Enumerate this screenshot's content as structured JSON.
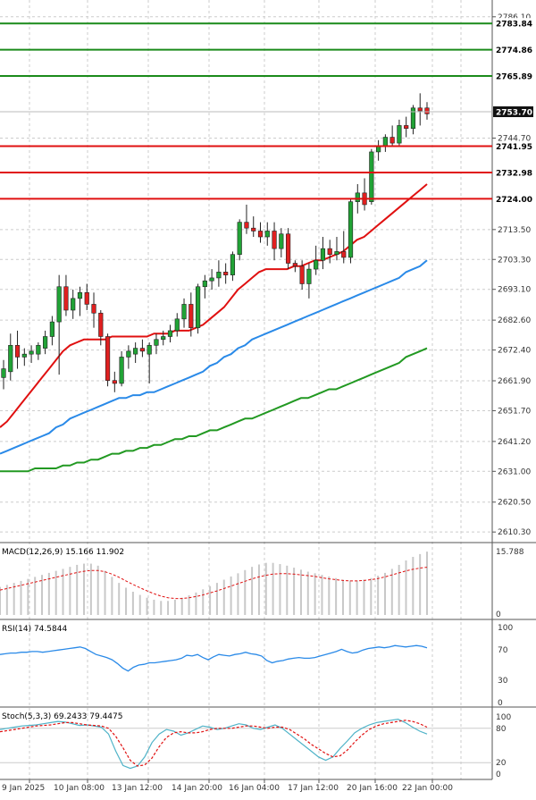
{
  "chart_data": {
    "type": "candlestick",
    "instrument_colors": {
      "up": "#21a336",
      "down": "#e02020",
      "resistance": "#1a8a1a",
      "support": "#e01010",
      "ma_fast": "#e01010",
      "ma_mid": "#2a8ae8",
      "ma_slow": "#229922",
      "macd_hist": "#c8c8c8",
      "macd_signal": "#e01010",
      "rsi": "#2a8ae8",
      "stoch_k": "#4fb3c8",
      "stoch_d": "#e01010",
      "grid": "#cccccc"
    },
    "price_axis": {
      "ticks": [
        "2610.30",
        "2620.50",
        "2631.00",
        "2641.20",
        "2651.70",
        "2661.90",
        "2672.40",
        "2682.60",
        "2693.10",
        "2703.30",
        "2713.50",
        "2744.70",
        "2786.10"
      ],
      "ylim": [
        2607,
        2790
      ]
    },
    "time_axis": {
      "labels": [
        "9 Jan 2025",
        "10 Jan 08:00",
        "13 Jan 12:00",
        "14 Jan 20:00",
        "16 Jan 04:00",
        "17 Jan 12:00",
        "20 Jan 16:00",
        "22 Jan 00:00"
      ]
    },
    "current_price": "2753.70",
    "resistance_levels": [
      "2783.84",
      "2774.86",
      "2765.89"
    ],
    "support_levels": [
      "2741.95",
      "2732.98",
      "2724.00"
    ],
    "candles": [
      {
        "o": 2663,
        "h": 2669,
        "l": 2659,
        "c": 2666
      },
      {
        "o": 2665,
        "h": 2678,
        "l": 2662,
        "c": 2674
      },
      {
        "o": 2674,
        "h": 2679,
        "l": 2666,
        "c": 2670
      },
      {
        "o": 2670,
        "h": 2673,
        "l": 2667,
        "c": 2671
      },
      {
        "o": 2671,
        "h": 2674,
        "l": 2668,
        "c": 2672
      },
      {
        "o": 2671,
        "h": 2675,
        "l": 2669,
        "c": 2674
      },
      {
        "o": 2673,
        "h": 2679,
        "l": 2671,
        "c": 2677
      },
      {
        "o": 2677,
        "h": 2684,
        "l": 2674,
        "c": 2682
      },
      {
        "o": 2682,
        "h": 2698,
        "l": 2664,
        "c": 2694
      },
      {
        "o": 2694,
        "h": 2698,
        "l": 2684,
        "c": 2686
      },
      {
        "o": 2686,
        "h": 2693,
        "l": 2683,
        "c": 2690
      },
      {
        "o": 2690,
        "h": 2694,
        "l": 2684,
        "c": 2692
      },
      {
        "o": 2692,
        "h": 2695,
        "l": 2686,
        "c": 2688
      },
      {
        "o": 2688,
        "h": 2692,
        "l": 2680,
        "c": 2685
      },
      {
        "o": 2685,
        "h": 2686,
        "l": 2674,
        "c": 2677
      },
      {
        "o": 2677,
        "h": 2678,
        "l": 2660,
        "c": 2662
      },
      {
        "o": 2662,
        "h": 2665,
        "l": 2658,
        "c": 2661
      },
      {
        "o": 2661,
        "h": 2672,
        "l": 2660,
        "c": 2670
      },
      {
        "o": 2670,
        "h": 2674,
        "l": 2666,
        "c": 2672
      },
      {
        "o": 2671,
        "h": 2675,
        "l": 2668,
        "c": 2673
      },
      {
        "o": 2673,
        "h": 2676,
        "l": 2670,
        "c": 2672
      },
      {
        "o": 2671,
        "h": 2675,
        "l": 2661,
        "c": 2674
      },
      {
        "o": 2674,
        "h": 2678,
        "l": 2671,
        "c": 2676
      },
      {
        "o": 2676,
        "h": 2679,
        "l": 2674,
        "c": 2677
      },
      {
        "o": 2677,
        "h": 2681,
        "l": 2675,
        "c": 2679
      },
      {
        "o": 2679,
        "h": 2685,
        "l": 2677,
        "c": 2683
      },
      {
        "o": 2683,
        "h": 2690,
        "l": 2680,
        "c": 2688
      },
      {
        "o": 2688,
        "h": 2692,
        "l": 2677,
        "c": 2680
      },
      {
        "o": 2680,
        "h": 2695,
        "l": 2678,
        "c": 2694
      },
      {
        "o": 2694,
        "h": 2698,
        "l": 2690,
        "c": 2696
      },
      {
        "o": 2696,
        "h": 2700,
        "l": 2693,
        "c": 2697
      },
      {
        "o": 2697,
        "h": 2703,
        "l": 2694,
        "c": 2699
      },
      {
        "o": 2699,
        "h": 2702,
        "l": 2695,
        "c": 2698
      },
      {
        "o": 2698,
        "h": 2706,
        "l": 2696,
        "c": 2705
      },
      {
        "o": 2705,
        "h": 2717,
        "l": 2703,
        "c": 2716
      },
      {
        "o": 2716,
        "h": 2722,
        "l": 2712,
        "c": 2714
      },
      {
        "o": 2714,
        "h": 2718,
        "l": 2711,
        "c": 2713
      },
      {
        "o": 2713,
        "h": 2716,
        "l": 2709,
        "c": 2711
      },
      {
        "o": 2711,
        "h": 2716,
        "l": 2708,
        "c": 2713
      },
      {
        "o": 2713,
        "h": 2716,
        "l": 2703,
        "c": 2707
      },
      {
        "o": 2707,
        "h": 2714,
        "l": 2704,
        "c": 2712
      },
      {
        "o": 2712,
        "h": 2714,
        "l": 2700,
        "c": 2702
      },
      {
        "o": 2702,
        "h": 2703,
        "l": 2699,
        "c": 2701
      },
      {
        "o": 2701,
        "h": 2703,
        "l": 2693,
        "c": 2695
      },
      {
        "o": 2695,
        "h": 2702,
        "l": 2690,
        "c": 2700
      },
      {
        "o": 2700,
        "h": 2708,
        "l": 2698,
        "c": 2703
      },
      {
        "o": 2703,
        "h": 2711,
        "l": 2700,
        "c": 2707
      },
      {
        "o": 2707,
        "h": 2710,
        "l": 2702,
        "c": 2705
      },
      {
        "o": 2705,
        "h": 2711,
        "l": 2703,
        "c": 2706
      },
      {
        "o": 2706,
        "h": 2713,
        "l": 2702,
        "c": 2704
      },
      {
        "o": 2704,
        "h": 2724,
        "l": 2702,
        "c": 2723
      },
      {
        "o": 2723,
        "h": 2729,
        "l": 2719,
        "c": 2726
      },
      {
        "o": 2726,
        "h": 2731,
        "l": 2720,
        "c": 2722
      },
      {
        "o": 2723,
        "h": 2741,
        "l": 2722,
        "c": 2740
      },
      {
        "o": 2740,
        "h": 2744,
        "l": 2737,
        "c": 2742
      },
      {
        "o": 2742,
        "h": 2746,
        "l": 2740,
        "c": 2745
      },
      {
        "o": 2745,
        "h": 2749,
        "l": 2742,
        "c": 2743
      },
      {
        "o": 2743,
        "h": 2751,
        "l": 2742,
        "c": 2749
      },
      {
        "o": 2749,
        "h": 2752,
        "l": 2745,
        "c": 2748
      },
      {
        "o": 2748,
        "h": 2756,
        "l": 2746,
        "c": 2755
      },
      {
        "o": 2755,
        "h": 2760,
        "l": 2749,
        "c": 2754
      },
      {
        "o": 2755,
        "h": 2757,
        "l": 2751,
        "c": 2753
      }
    ],
    "ma_fast": [
      2646,
      2648,
      2651,
      2654,
      2657,
      2660,
      2663,
      2666,
      2669,
      2672,
      2674,
      2675,
      2676,
      2676,
      2676,
      2676,
      2677,
      2677,
      2677,
      2677,
      2677,
      2677,
      2678,
      2678,
      2678,
      2679,
      2679,
      2679,
      2680,
      2681,
      2683,
      2685,
      2687,
      2690,
      2693,
      2695,
      2697,
      2699,
      2700,
      2700,
      2700,
      2700,
      2701,
      2701,
      2702,
      2703,
      2703,
      2704,
      2705,
      2706,
      2708,
      2710,
      2711,
      2713,
      2715,
      2717,
      2719,
      2721,
      2723,
      2725,
      2727,
      2729
    ],
    "ma_mid": [
      2637,
      2638,
      2639,
      2640,
      2641,
      2642,
      2643,
      2644,
      2646,
      2647,
      2649,
      2650,
      2651,
      2652,
      2653,
      2654,
      2655,
      2656,
      2656,
      2657,
      2657,
      2658,
      2658,
      2659,
      2660,
      2661,
      2662,
      2663,
      2664,
      2665,
      2667,
      2668,
      2670,
      2671,
      2673,
      2674,
      2676,
      2677,
      2678,
      2679,
      2680,
      2681,
      2682,
      2683,
      2684,
      2685,
      2686,
      2687,
      2688,
      2689,
      2690,
      2691,
      2692,
      2693,
      2694,
      2695,
      2696,
      2697,
      2699,
      2700,
      2701,
      2703
    ],
    "ma_slow": [
      2631,
      2631,
      2631,
      2631,
      2631,
      2632,
      2632,
      2632,
      2632,
      2633,
      2633,
      2634,
      2634,
      2635,
      2635,
      2636,
      2637,
      2637,
      2638,
      2638,
      2639,
      2639,
      2640,
      2640,
      2641,
      2642,
      2642,
      2643,
      2643,
      2644,
      2645,
      2645,
      2646,
      2647,
      2648,
      2649,
      2649,
      2650,
      2651,
      2652,
      2653,
      2654,
      2655,
      2656,
      2656,
      2657,
      2658,
      2659,
      2659,
      2660,
      2661,
      2662,
      2663,
      2664,
      2665,
      2666,
      2667,
      2668,
      2670,
      2671,
      2672,
      2673
    ],
    "macd": {
      "label": "MACD(12,26,9) 15.166 11.902",
      "top_label": "15.788",
      "zero_label": "0",
      "ylim": [
        0,
        16.5
      ],
      "histogram": [
        7,
        7.5,
        8,
        8.5,
        9,
        9.5,
        10,
        10.5,
        11,
        11.5,
        12,
        12.5,
        12.8,
        12.8,
        12.3,
        11,
        9.5,
        8,
        6.8,
        5.8,
        5,
        4.3,
        3.8,
        3.5,
        3.5,
        3.8,
        4.3,
        4.9,
        5.6,
        6.4,
        7.2,
        8,
        8.8,
        9.6,
        10.4,
        11.2,
        12,
        12.6,
        13,
        13,
        12.7,
        12.3,
        11.8,
        11.3,
        10.8,
        10.4,
        10,
        9.6,
        9.2,
        8.8,
        8.6,
        8.6,
        8.8,
        9.2,
        9.8,
        10.5,
        11.5,
        12.5,
        13.6,
        14.5,
        15.2,
        15.8
      ],
      "signal": [
        6.2,
        6.6,
        7,
        7.4,
        7.8,
        8.2,
        8.6,
        9,
        9.4,
        9.8,
        10.2,
        10.6,
        10.9,
        11.1,
        11.1,
        10.8,
        10.2,
        9.4,
        8.5,
        7.6,
        6.8,
        6,
        5.3,
        4.7,
        4.3,
        4.1,
        4.1,
        4.3,
        4.6,
        5,
        5.5,
        6,
        6.6,
        7.2,
        7.8,
        8.4,
        9,
        9.5,
        9.9,
        10.2,
        10.3,
        10.3,
        10.2,
        10,
        9.8,
        9.6,
        9.3,
        9,
        8.8,
        8.6,
        8.5,
        8.5,
        8.6,
        8.8,
        9.1,
        9.5,
        10,
        10.5,
        11,
        11.4,
        11.7,
        11.9
      ]
    },
    "rsi": {
      "label": "RSI(14) 74.5844",
      "ticks": [
        "100",
        "70",
        "30",
        "0"
      ],
      "values": [
        64,
        65,
        66,
        66,
        67,
        67,
        68,
        68,
        67,
        68,
        69,
        70,
        71,
        72,
        73,
        74,
        72,
        68,
        64,
        62,
        60,
        57,
        52,
        46,
        42,
        47,
        50,
        51,
        53,
        53,
        54,
        55,
        56,
        57,
        59,
        63,
        62,
        64,
        60,
        57,
        61,
        64,
        63,
        62,
        64,
        65,
        67,
        65,
        64,
        62,
        56,
        53,
        55,
        56,
        58,
        59,
        60,
        59,
        59,
        60,
        62,
        64,
        66,
        68,
        71,
        68,
        66,
        67,
        70,
        72,
        73,
        74,
        73,
        74,
        76,
        75,
        74,
        75,
        76,
        75,
        73
      ]
    },
    "stoch": {
      "label": "Stoch(5,3,3) 69.2433 79.4475",
      "ticks": [
        "100",
        "80",
        "20",
        "0"
      ],
      "k": [
        78,
        80,
        82,
        84,
        85,
        86,
        88,
        90,
        92,
        91,
        88,
        85,
        86,
        84,
        82,
        70,
        40,
        15,
        10,
        14,
        30,
        55,
        70,
        78,
        75,
        68,
        72,
        78,
        84,
        82,
        78,
        80,
        84,
        88,
        86,
        80,
        78,
        82,
        86,
        80,
        70,
        60,
        50,
        40,
        30,
        24,
        30,
        45,
        58,
        72,
        80,
        86,
        90,
        92,
        94,
        96,
        90,
        82,
        75,
        70
      ],
      "d": [
        74,
        76,
        78,
        80,
        82,
        84,
        85,
        86,
        88,
        90,
        90,
        88,
        86,
        85,
        84,
        80,
        66,
        46,
        24,
        14,
        16,
        28,
        48,
        64,
        72,
        74,
        72,
        72,
        74,
        78,
        80,
        80,
        80,
        82,
        84,
        84,
        82,
        80,
        82,
        82,
        78,
        70,
        62,
        52,
        44,
        36,
        30,
        32,
        42,
        56,
        68,
        78,
        84,
        88,
        90,
        92,
        94,
        92,
        88,
        82
      ]
    }
  }
}
